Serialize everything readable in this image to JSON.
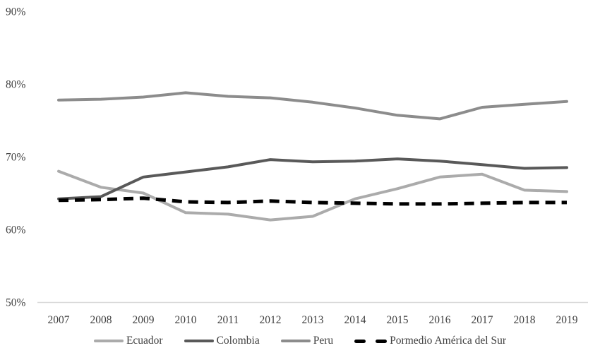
{
  "colors": {
    "background": "#ffffff",
    "axis_line": "#d9d9d9",
    "label_text": "#3f3f3f",
    "dashed_line": "#000000"
  },
  "chart_data": {
    "type": "line",
    "title": "",
    "xlabel": "",
    "ylabel": "",
    "grid": false,
    "legend_position": "bottom",
    "y_min": 50,
    "y_max": 90,
    "y_tick_step": 10,
    "y_ticks": [
      "90%",
      "80%",
      "70%",
      "60%",
      "50%"
    ],
    "x_categories": [
      "2007",
      "2008",
      "2009",
      "2010",
      "2011",
      "2012",
      "2013",
      "2014",
      "2015",
      "2016",
      "2017",
      "2018",
      "2019"
    ],
    "series": [
      {
        "name": "Ecuador",
        "color": "#ababab",
        "style": "solid",
        "values": [
          68.0,
          65.8,
          65.0,
          62.3,
          62.1,
          61.3,
          61.8,
          64.2,
          65.6,
          67.2,
          67.6,
          65.4,
          65.2
        ]
      },
      {
        "name": "Colombia",
        "color": "#595959",
        "style": "solid",
        "values": [
          64.2,
          64.5,
          67.2,
          67.9,
          68.6,
          69.6,
          69.3,
          69.4,
          69.7,
          69.4,
          68.9,
          68.4,
          68.5
        ]
      },
      {
        "name": "Peru",
        "color": "#8c8c8c",
        "style": "solid",
        "values": [
          77.8,
          77.9,
          78.2,
          78.8,
          78.3,
          78.1,
          77.5,
          76.7,
          75.7,
          75.2,
          76.8,
          77.2,
          77.6
        ]
      },
      {
        "name": "Pormedio América del Sur",
        "color": "#000000",
        "style": "dashed",
        "values": [
          64.0,
          64.1,
          64.3,
          63.8,
          63.7,
          63.9,
          63.7,
          63.6,
          63.5,
          63.5,
          63.6,
          63.7,
          63.7
        ]
      }
    ]
  }
}
